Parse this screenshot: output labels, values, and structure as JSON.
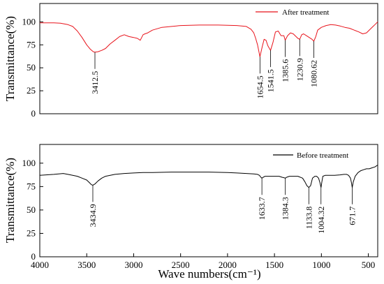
{
  "chart_data": [
    {
      "type": "line",
      "ylabel": "Transmittance(%)",
      "xlabel": "",
      "xlim": [
        4000,
        400
      ],
      "ylim": [
        0,
        120
      ],
      "yticks": [
        0,
        25,
        50,
        75,
        100
      ],
      "xticks": [],
      "grid": false,
      "legend_position": "top-right",
      "series": [
        {
          "name": "After treatment",
          "color": "#e8131b",
          "x": [
            4000,
            3850,
            3780,
            3700,
            3650,
            3600,
            3550,
            3500,
            3460,
            3430,
            3412.5,
            3380,
            3340,
            3300,
            3250,
            3200,
            3150,
            3100,
            3050,
            3000,
            2960,
            2930,
            2900,
            2880,
            2850,
            2800,
            2700,
            2500,
            2300,
            2100,
            1900,
            1800,
            1750,
            1720,
            1700,
            1680,
            1654.5,
            1630,
            1610,
            1590,
            1570,
            1541.5,
            1515,
            1490,
            1460,
            1430,
            1400,
            1385.6,
            1360,
            1330,
            1300,
            1270,
            1250,
            1230.9,
            1210,
            1190,
            1160,
            1130,
            1100,
            1080.62,
            1060,
            1040,
            1000,
            950,
            900,
            850,
            800,
            750,
            700,
            650,
            600,
            560,
            520,
            480,
            450,
            430,
            400
          ],
          "values": [
            99,
            99,
            98.5,
            97,
            95,
            90,
            83,
            75,
            70,
            67.5,
            67,
            67.5,
            69,
            71,
            76,
            80,
            84,
            86,
            84,
            83,
            82,
            80,
            86,
            87,
            88,
            91,
            94,
            96,
            96.5,
            96.5,
            96,
            95,
            92,
            88,
            82,
            75,
            62,
            73,
            81,
            80,
            74,
            69,
            78,
            89,
            90,
            85,
            85,
            80,
            85,
            88,
            87,
            84,
            82,
            81,
            86,
            87,
            85,
            83,
            81,
            79,
            84,
            91,
            94,
            96,
            97,
            96.5,
            95.5,
            94,
            93,
            91,
            89,
            87,
            88,
            92,
            95,
            97,
            100
          ]
        }
      ],
      "annotations": [
        {
          "x": 3412.5,
          "label": "3412.5"
        },
        {
          "x": 1654.5,
          "label": "1654.5"
        },
        {
          "x": 1541.5,
          "label": "1541.5"
        },
        {
          "x": 1385.6,
          "label": "1385.6"
        },
        {
          "x": 1230.9,
          "label": "1230.9"
        },
        {
          "x": 1080.62,
          "label": "1080.62"
        }
      ]
    },
    {
      "type": "line",
      "ylabel": "Transmittance(%)",
      "xlabel": "Wave numbers(cm⁻¹)",
      "xlim": [
        4000,
        400
      ],
      "ylim": [
        0,
        120
      ],
      "yticks": [
        0,
        25,
        50,
        75,
        100
      ],
      "xticks": [
        4000,
        3500,
        3000,
        2500,
        2000,
        1500,
        1000,
        500
      ],
      "grid": false,
      "legend_position": "top-right",
      "series": [
        {
          "name": "Before treatment",
          "color": "#000000",
          "x": [
            4000,
            3850,
            3750,
            3700,
            3650,
            3600,
            3550,
            3500,
            3470,
            3450,
            3434.9,
            3410,
            3380,
            3340,
            3300,
            3200,
            3100,
            3000,
            2900,
            2800,
            2600,
            2400,
            2200,
            2000,
            1900,
            1800,
            1720,
            1680,
            1660,
            1645,
            1633.7,
            1620,
            1600,
            1560,
            1500,
            1450,
            1420,
            1400,
            1384.3,
            1370,
            1340,
            1300,
            1250,
            1200,
            1175,
            1155,
            1133.8,
            1115,
            1095,
            1070,
            1050,
            1030,
            1015,
            1004.32,
            995,
            985,
            960,
            920,
            860,
            800,
            760,
            730,
            710,
            690,
            680,
            671.7,
            660,
            640,
            610,
            580,
            550,
            520,
            490,
            460,
            430,
            400
          ],
          "values": [
            87,
            88,
            89,
            88,
            87,
            86,
            84,
            82,
            79,
            77,
            76.5,
            78,
            81,
            84,
            86,
            88,
            89,
            89.5,
            90,
            90,
            90.5,
            90.5,
            90.5,
            90,
            89.5,
            89,
            88.5,
            88,
            87,
            85,
            84,
            85,
            86,
            86,
            86,
            86,
            85,
            84.5,
            84,
            85,
            86,
            86,
            86,
            84,
            80,
            76,
            74,
            76,
            84,
            86,
            86,
            84,
            79,
            74,
            80,
            86,
            87,
            87,
            87,
            87.5,
            88,
            88,
            87,
            84,
            79,
            74,
            80,
            86,
            90,
            92,
            93,
            94,
            94,
            95,
            96,
            98
          ]
        }
      ],
      "annotations": [
        {
          "x": 3434.9,
          "label": "3434.9"
        },
        {
          "x": 1633.7,
          "label": "1633.7"
        },
        {
          "x": 1384.3,
          "label": "1384.3"
        },
        {
          "x": 1133.8,
          "label": "1133.8"
        },
        {
          "x": 1004.32,
          "label": "1004.32"
        },
        {
          "x": 671.7,
          "label": "671.7"
        }
      ]
    }
  ]
}
